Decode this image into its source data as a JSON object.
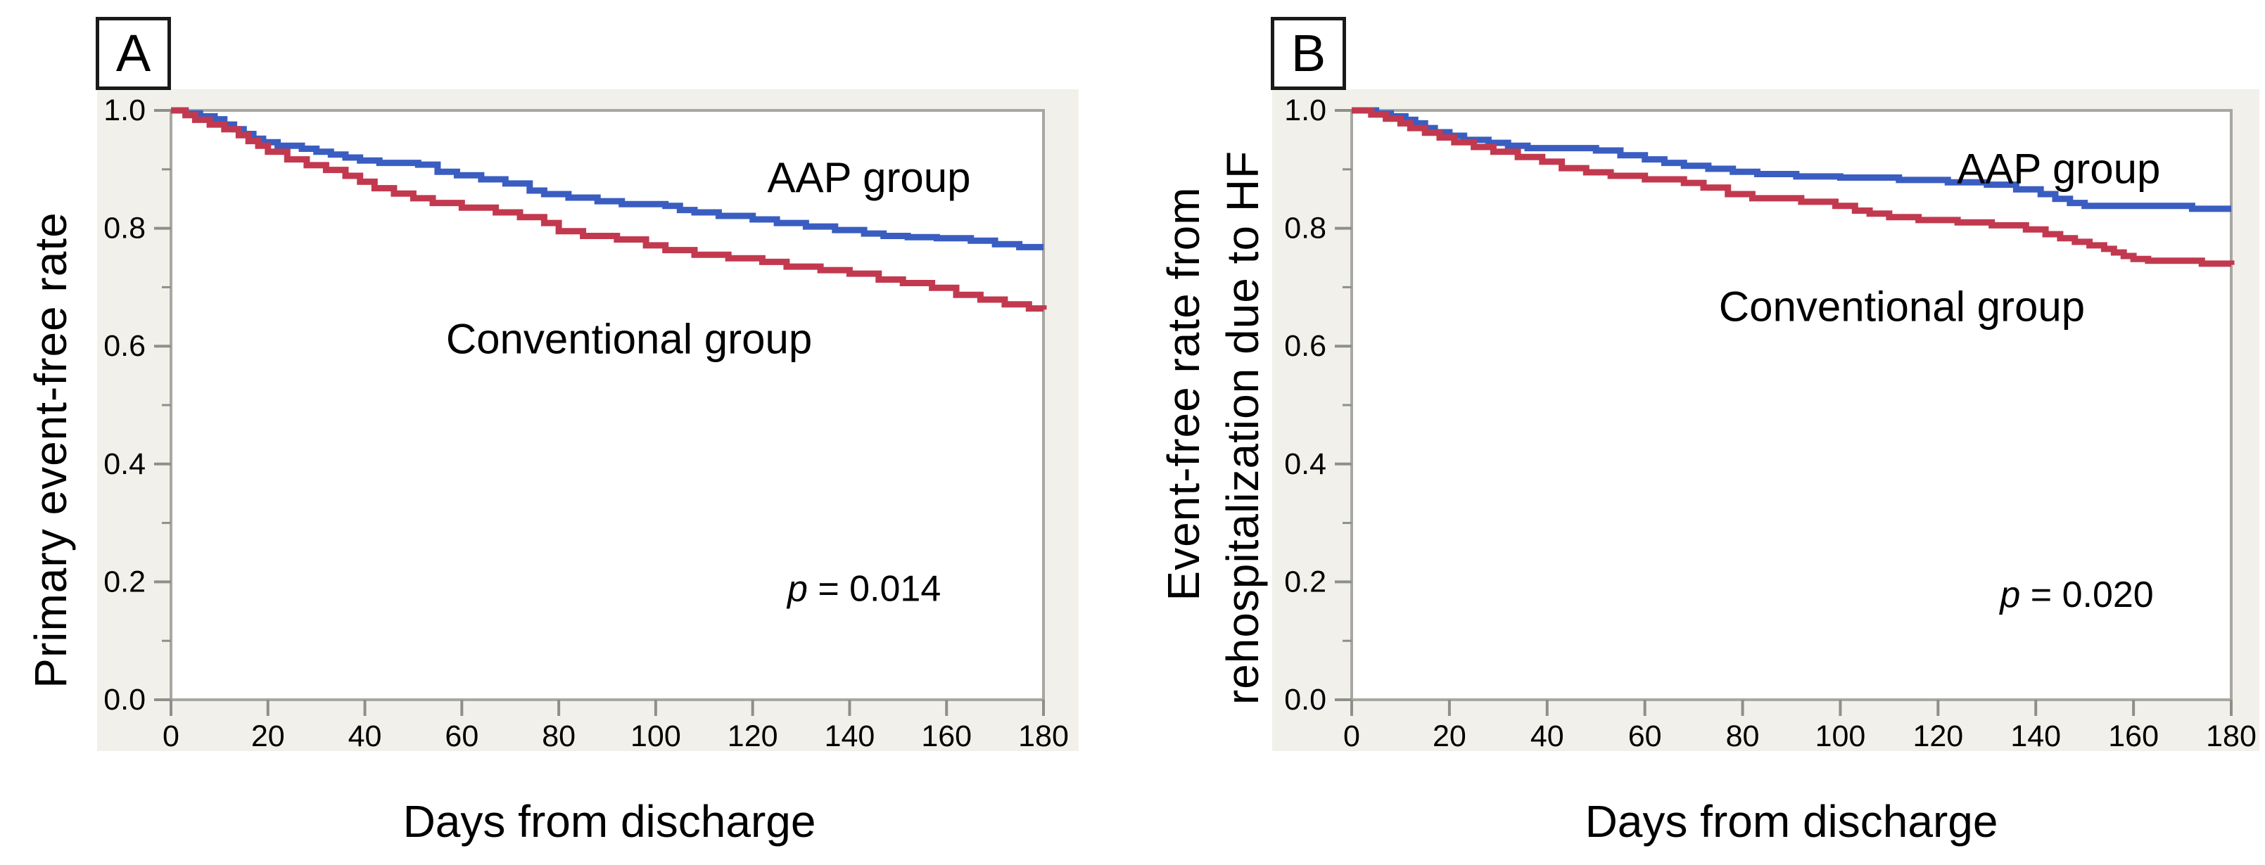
{
  "figure": {
    "background": "#ffffff",
    "panel_background": "#f1f0ea",
    "frame_color": "#a8a8a2",
    "tick_color": "#8f8f8a",
    "text_color": "#000000",
    "aap_color": "#3a5dc1",
    "conventional_color": "#c2394f"
  },
  "chart_data": [
    {
      "type": "line",
      "subtype": "kaplan-meier-step",
      "panel_letter": "A",
      "ylabel_lines": [
        "Primary event-free rate"
      ],
      "xlabel": "Days from discharge",
      "xlim": [
        0,
        180
      ],
      "ylim": [
        0.0,
        1.0
      ],
      "grid": false,
      "legend_position": "labels-on-plot",
      "xticks": [
        {
          "value": 0,
          "label": "0"
        },
        {
          "value": 20,
          "label": "20"
        },
        {
          "value": 40,
          "label": "40"
        },
        {
          "value": 60,
          "label": "60"
        },
        {
          "value": 80,
          "label": "80"
        },
        {
          "value": 100,
          "label": "100"
        },
        {
          "value": 120,
          "label": "120"
        },
        {
          "value": 140,
          "label": "140"
        },
        {
          "value": 160,
          "label": "160"
        },
        {
          "value": 180,
          "label": "180"
        }
      ],
      "yticks": [
        {
          "value": 1.0,
          "label": "1.0"
        },
        {
          "value": 0.8,
          "label": "0.8"
        },
        {
          "value": 0.6,
          "label": "0.6"
        },
        {
          "value": 0.4,
          "label": "0.4"
        },
        {
          "value": 0.2,
          "label": "0.2"
        },
        {
          "value": 0.0,
          "label": "0.0"
        }
      ],
      "yticks_minor": [
        0.9,
        0.7,
        0.5,
        0.3,
        0.1
      ],
      "series": [
        {
          "name": "AAP group",
          "color": "#3a5dc1",
          "points": [
            [
              0,
              1.0
            ],
            [
              3,
              0.995
            ],
            [
              6,
              0.99
            ],
            [
              9,
              0.985
            ],
            [
              11,
              0.976
            ],
            [
              13,
              0.968
            ],
            [
              15,
              0.96
            ],
            [
              17,
              0.952
            ],
            [
              19,
              0.946
            ],
            [
              22,
              0.94
            ],
            [
              27,
              0.935
            ],
            [
              30,
              0.93
            ],
            [
              33,
              0.925
            ],
            [
              36,
              0.92
            ],
            [
              39,
              0.915
            ],
            [
              43,
              0.911
            ],
            [
              51,
              0.908
            ],
            [
              55,
              0.896
            ],
            [
              59,
              0.89
            ],
            [
              64,
              0.883
            ],
            [
              69,
              0.876
            ],
            [
              74,
              0.864
            ],
            [
              77,
              0.858
            ],
            [
              82,
              0.852
            ],
            [
              88,
              0.846
            ],
            [
              93,
              0.841
            ],
            [
              102,
              0.838
            ],
            [
              105,
              0.831
            ],
            [
              108,
              0.827
            ],
            [
              113,
              0.821
            ],
            [
              120,
              0.815
            ],
            [
              125,
              0.809
            ],
            [
              131,
              0.803
            ],
            [
              137,
              0.797
            ],
            [
              143,
              0.791
            ],
            [
              147,
              0.787
            ],
            [
              152,
              0.785
            ],
            [
              158,
              0.783
            ],
            [
              165,
              0.779
            ],
            [
              170,
              0.773
            ],
            [
              175,
              0.768
            ],
            [
              180,
              0.768
            ]
          ]
        },
        {
          "name": "Conventional group",
          "color": "#c2394f",
          "points": [
            [
              0,
              1.0
            ],
            [
              3,
              0.992
            ],
            [
              5,
              0.984
            ],
            [
              8,
              0.976
            ],
            [
              11,
              0.968
            ],
            [
              14,
              0.958
            ],
            [
              16,
              0.948
            ],
            [
              18,
              0.94
            ],
            [
              20,
              0.93
            ],
            [
              24,
              0.917
            ],
            [
              28,
              0.907
            ],
            [
              32,
              0.899
            ],
            [
              36,
              0.889
            ],
            [
              39,
              0.879
            ],
            [
              42,
              0.868
            ],
            [
              46,
              0.859
            ],
            [
              50,
              0.851
            ],
            [
              54,
              0.843
            ],
            [
              60,
              0.835
            ],
            [
              67,
              0.827
            ],
            [
              72,
              0.819
            ],
            [
              77,
              0.809
            ],
            [
              80,
              0.795
            ],
            [
              85,
              0.787
            ],
            [
              92,
              0.781
            ],
            [
              98,
              0.771
            ],
            [
              102,
              0.763
            ],
            [
              108,
              0.755
            ],
            [
              115,
              0.749
            ],
            [
              122,
              0.743
            ],
            [
              127,
              0.735
            ],
            [
              134,
              0.729
            ],
            [
              140,
              0.723
            ],
            [
              146,
              0.713
            ],
            [
              151,
              0.707
            ],
            [
              157,
              0.699
            ],
            [
              162,
              0.687
            ],
            [
              167,
              0.679
            ],
            [
              172,
              0.671
            ],
            [
              177,
              0.664
            ],
            [
              180,
              0.662
            ]
          ]
        }
      ],
      "annotations": [
        {
          "kind": "series-label",
          "text": "AAP group",
          "day": 144,
          "rate": 0.886
        },
        {
          "kind": "series-label",
          "text": "Conventional group",
          "day": 94.5,
          "rate": 0.612
        },
        {
          "kind": "p-value",
          "italic_text": "p",
          "text": " = 0.014",
          "day": 143,
          "rate": 0.188
        }
      ]
    },
    {
      "type": "line",
      "subtype": "kaplan-meier-step",
      "panel_letter": "B",
      "ylabel_lines": [
        "Event-free rate from",
        "rehospitalization due to HF"
      ],
      "xlabel": "Days from discharge",
      "xlim": [
        0,
        180
      ],
      "ylim": [
        0.0,
        1.0
      ],
      "grid": false,
      "legend_position": "labels-on-plot",
      "xticks": [
        {
          "value": 0,
          "label": "0"
        },
        {
          "value": 20,
          "label": "20"
        },
        {
          "value": 40,
          "label": "40"
        },
        {
          "value": 60,
          "label": "60"
        },
        {
          "value": 80,
          "label": "80"
        },
        {
          "value": 100,
          "label": "100"
        },
        {
          "value": 120,
          "label": "120"
        },
        {
          "value": 140,
          "label": "140"
        },
        {
          "value": 160,
          "label": "160"
        },
        {
          "value": 180,
          "label": "180"
        }
      ],
      "yticks": [
        {
          "value": 1.0,
          "label": "1.0"
        },
        {
          "value": 0.8,
          "label": "0.8"
        },
        {
          "value": 0.6,
          "label": "0.6"
        },
        {
          "value": 0.4,
          "label": "0.4"
        },
        {
          "value": 0.2,
          "label": "0.2"
        },
        {
          "value": 0.0,
          "label": "0.0"
        }
      ],
      "yticks_minor": [
        0.9,
        0.7,
        0.5,
        0.3,
        0.1
      ],
      "series": [
        {
          "name": "AAP group",
          "color": "#3a5dc1",
          "points": [
            [
              0,
              1.0
            ],
            [
              5,
              0.995
            ],
            [
              8,
              0.99
            ],
            [
              11,
              0.984
            ],
            [
              13,
              0.978
            ],
            [
              15,
              0.97
            ],
            [
              17,
              0.963
            ],
            [
              20,
              0.957
            ],
            [
              23,
              0.95
            ],
            [
              28,
              0.945
            ],
            [
              32,
              0.94
            ],
            [
              36,
              0.936
            ],
            [
              50,
              0.932
            ],
            [
              55,
              0.924
            ],
            [
              60,
              0.917
            ],
            [
              64,
              0.911
            ],
            [
              68,
              0.906
            ],
            [
              73,
              0.901
            ],
            [
              78,
              0.896
            ],
            [
              83,
              0.892
            ],
            [
              91,
              0.888
            ],
            [
              100,
              0.886
            ],
            [
              112,
              0.882
            ],
            [
              122,
              0.878
            ],
            [
              130,
              0.874
            ],
            [
              136,
              0.866
            ],
            [
              141,
              0.858
            ],
            [
              144,
              0.85
            ],
            [
              147,
              0.843
            ],
            [
              150,
              0.838
            ],
            [
              172,
              0.833
            ],
            [
              180,
              0.833
            ]
          ]
        },
        {
          "name": "Conventional group",
          "color": "#c2394f",
          "points": [
            [
              0,
              1.0
            ],
            [
              4,
              0.993
            ],
            [
              7,
              0.986
            ],
            [
              10,
              0.978
            ],
            [
              12,
              0.97
            ],
            [
              15,
              0.962
            ],
            [
              18,
              0.954
            ],
            [
              21,
              0.946
            ],
            [
              25,
              0.938
            ],
            [
              29,
              0.93
            ],
            [
              34,
              0.921
            ],
            [
              39,
              0.913
            ],
            [
              43,
              0.902
            ],
            [
              48,
              0.895
            ],
            [
              53,
              0.889
            ],
            [
              60,
              0.883
            ],
            [
              68,
              0.877
            ],
            [
              72,
              0.869
            ],
            [
              77,
              0.858
            ],
            [
              82,
              0.851
            ],
            [
              92,
              0.845
            ],
            [
              99,
              0.838
            ],
            [
              103,
              0.83
            ],
            [
              106,
              0.825
            ],
            [
              110,
              0.819
            ],
            [
              116,
              0.814
            ],
            [
              124,
              0.81
            ],
            [
              131,
              0.805
            ],
            [
              138,
              0.798
            ],
            [
              142,
              0.79
            ],
            [
              145,
              0.783
            ],
            [
              148,
              0.777
            ],
            [
              151,
              0.771
            ],
            [
              154,
              0.765
            ],
            [
              156,
              0.759
            ],
            [
              158,
              0.753
            ],
            [
              160,
              0.748
            ],
            [
              163,
              0.745
            ],
            [
              174,
              0.74
            ],
            [
              180,
              0.738
            ]
          ]
        }
      ],
      "annotations": [
        {
          "kind": "series-label",
          "text": "AAP group",
          "day": 144.7,
          "rate": 0.901
        },
        {
          "kind": "series-label",
          "text": "Conventional group",
          "day": 112.6,
          "rate": 0.667
        },
        {
          "kind": "p-value",
          "italic_text": "p",
          "text": " = 0.020",
          "day": 148.4,
          "rate": 0.178
        }
      ]
    }
  ]
}
